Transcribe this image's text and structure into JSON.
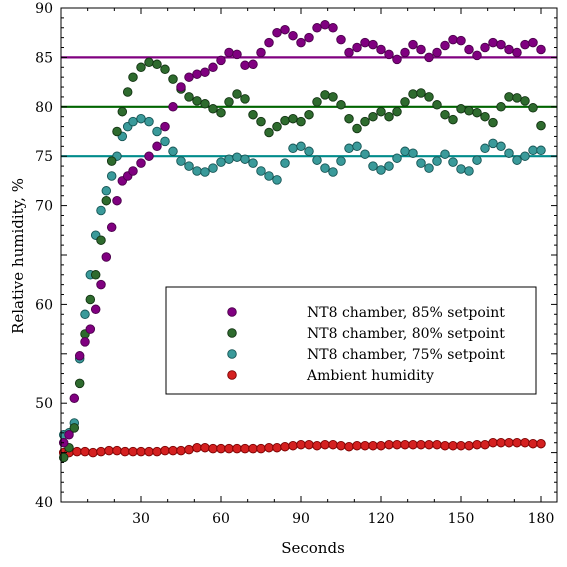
{
  "chart_data": {
    "type": "scatter",
    "title": "",
    "xlabel": "Seconds",
    "ylabel": "Relative humidity, %",
    "xlim": [
      0,
      186
    ],
    "ylim": [
      40,
      90
    ],
    "xticks": [
      30,
      60,
      90,
      120,
      150,
      180
    ],
    "yticks": [
      40,
      50,
      60,
      70,
      75,
      80,
      85,
      90
    ],
    "grid": false,
    "legend_position": "center-right",
    "reference_lines": [
      {
        "y": 85,
        "color": "#800080"
      },
      {
        "y": 80,
        "color": "#006400"
      },
      {
        "y": 75,
        "color": "#008b8b"
      }
    ],
    "series": [
      {
        "name": "NT8 chamber, 85% setpoint",
        "color": "#800080",
        "edge": "#4b004b",
        "points": [
          [
            1,
            46.0
          ],
          [
            3,
            46.8
          ],
          [
            5,
            50.5
          ],
          [
            7,
            54.8
          ],
          [
            9,
            56.2
          ],
          [
            11,
            57.5
          ],
          [
            13,
            59.5
          ],
          [
            15,
            62.0
          ],
          [
            17,
            64.8
          ],
          [
            19,
            67.8
          ],
          [
            21,
            70.5
          ],
          [
            23,
            72.5
          ],
          [
            25,
            73.0
          ],
          [
            27,
            73.5
          ],
          [
            30,
            74.3
          ],
          [
            33,
            75.0
          ],
          [
            36,
            76.0
          ],
          [
            39,
            78.0
          ],
          [
            42,
            80.0
          ],
          [
            45,
            82.0
          ],
          [
            48,
            83.0
          ],
          [
            51,
            83.3
          ],
          [
            54,
            83.5
          ],
          [
            57,
            84.0
          ],
          [
            60,
            84.7
          ],
          [
            63,
            85.5
          ],
          [
            66,
            85.3
          ],
          [
            69,
            84.2
          ],
          [
            72,
            84.3
          ],
          [
            75,
            85.5
          ],
          [
            78,
            86.5
          ],
          [
            81,
            87.5
          ],
          [
            84,
            87.8
          ],
          [
            87,
            87.2
          ],
          [
            90,
            86.5
          ],
          [
            93,
            87.0
          ],
          [
            96,
            88.0
          ],
          [
            99,
            88.3
          ],
          [
            102,
            88.0
          ],
          [
            105,
            86.8
          ],
          [
            108,
            85.5
          ],
          [
            111,
            86.0
          ],
          [
            114,
            86.5
          ],
          [
            117,
            86.3
          ],
          [
            120,
            85.8
          ],
          [
            123,
            85.3
          ],
          [
            126,
            84.8
          ],
          [
            129,
            85.5
          ],
          [
            132,
            86.3
          ],
          [
            135,
            85.8
          ],
          [
            138,
            85.0
          ],
          [
            141,
            85.5
          ],
          [
            144,
            86.2
          ],
          [
            147,
            86.8
          ],
          [
            150,
            86.7
          ],
          [
            153,
            85.8
          ],
          [
            156,
            85.2
          ],
          [
            159,
            86.0
          ],
          [
            162,
            86.5
          ],
          [
            165,
            86.3
          ],
          [
            168,
            85.8
          ],
          [
            171,
            85.5
          ],
          [
            174,
            86.3
          ],
          [
            177,
            86.5
          ],
          [
            180,
            85.8
          ]
        ]
      },
      {
        "name": "NT8 chamber, 80% setpoint",
        "color": "#2e6b2e",
        "edge": "#123312",
        "points": [
          [
            1,
            44.5
          ],
          [
            3,
            45.5
          ],
          [
            5,
            47.5
          ],
          [
            7,
            52.0
          ],
          [
            9,
            57.0
          ],
          [
            11,
            60.5
          ],
          [
            13,
            63.0
          ],
          [
            15,
            66.5
          ],
          [
            17,
            70.5
          ],
          [
            19,
            74.5
          ],
          [
            21,
            77.5
          ],
          [
            23,
            79.5
          ],
          [
            25,
            81.5
          ],
          [
            27,
            83.0
          ],
          [
            30,
            84.0
          ],
          [
            33,
            84.5
          ],
          [
            36,
            84.3
          ],
          [
            39,
            83.8
          ],
          [
            42,
            82.8
          ],
          [
            45,
            81.8
          ],
          [
            48,
            81.0
          ],
          [
            51,
            80.6
          ],
          [
            54,
            80.3
          ],
          [
            57,
            79.8
          ],
          [
            60,
            79.4
          ],
          [
            63,
            80.5
          ],
          [
            66,
            81.3
          ],
          [
            69,
            80.8
          ],
          [
            72,
            79.2
          ],
          [
            75,
            78.5
          ],
          [
            78,
            77.4
          ],
          [
            81,
            78.0
          ],
          [
            84,
            78.6
          ],
          [
            87,
            78.8
          ],
          [
            90,
            78.5
          ],
          [
            93,
            79.2
          ],
          [
            96,
            80.5
          ],
          [
            99,
            81.2
          ],
          [
            102,
            81.0
          ],
          [
            105,
            80.2
          ],
          [
            108,
            78.8
          ],
          [
            111,
            77.8
          ],
          [
            114,
            78.5
          ],
          [
            117,
            79.0
          ],
          [
            120,
            79.5
          ],
          [
            123,
            79.0
          ],
          [
            126,
            79.5
          ],
          [
            129,
            80.5
          ],
          [
            132,
            81.3
          ],
          [
            135,
            81.4
          ],
          [
            138,
            81.0
          ],
          [
            141,
            80.2
          ],
          [
            144,
            79.2
          ],
          [
            147,
            78.7
          ],
          [
            150,
            79.8
          ],
          [
            153,
            79.6
          ],
          [
            156,
            79.4
          ],
          [
            159,
            79.0
          ],
          [
            162,
            78.4
          ],
          [
            165,
            80.0
          ],
          [
            168,
            81.0
          ],
          [
            171,
            80.9
          ],
          [
            174,
            80.6
          ],
          [
            177,
            79.9
          ],
          [
            180,
            78.1
          ]
        ]
      },
      {
        "name": "NT8 chamber, 75% setpoint",
        "color": "#3a9a9a",
        "edge": "#155454",
        "points": [
          [
            1,
            46.8
          ],
          [
            3,
            47.0
          ],
          [
            5,
            48.0
          ],
          [
            7,
            54.5
          ],
          [
            9,
            59.0
          ],
          [
            11,
            63.0
          ],
          [
            13,
            67.0
          ],
          [
            15,
            69.5
          ],
          [
            17,
            71.5
          ],
          [
            19,
            73.0
          ],
          [
            21,
            75.0
          ],
          [
            23,
            77.0
          ],
          [
            25,
            78.0
          ],
          [
            27,
            78.5
          ],
          [
            30,
            78.8
          ],
          [
            33,
            78.5
          ],
          [
            36,
            77.5
          ],
          [
            39,
            76.5
          ],
          [
            42,
            75.5
          ],
          [
            45,
            74.5
          ],
          [
            48,
            74.0
          ],
          [
            51,
            73.5
          ],
          [
            54,
            73.4
          ],
          [
            57,
            73.8
          ],
          [
            60,
            74.4
          ],
          [
            63,
            74.7
          ],
          [
            66,
            74.9
          ],
          [
            69,
            74.7
          ],
          [
            72,
            74.3
          ],
          [
            75,
            73.5
          ],
          [
            78,
            73.0
          ],
          [
            81,
            72.6
          ],
          [
            84,
            74.3
          ],
          [
            87,
            75.8
          ],
          [
            90,
            76.0
          ],
          [
            93,
            75.5
          ],
          [
            96,
            74.6
          ],
          [
            99,
            73.8
          ],
          [
            102,
            73.4
          ],
          [
            105,
            74.5
          ],
          [
            108,
            75.8
          ],
          [
            111,
            76.0
          ],
          [
            114,
            75.2
          ],
          [
            117,
            74.0
          ],
          [
            120,
            73.6
          ],
          [
            123,
            74.0
          ],
          [
            126,
            74.8
          ],
          [
            129,
            75.5
          ],
          [
            132,
            75.3
          ],
          [
            135,
            74.3
          ],
          [
            138,
            73.8
          ],
          [
            141,
            74.5
          ],
          [
            144,
            75.2
          ],
          [
            147,
            74.4
          ],
          [
            150,
            73.7
          ],
          [
            153,
            73.5
          ],
          [
            156,
            74.6
          ],
          [
            159,
            75.8
          ],
          [
            162,
            76.3
          ],
          [
            165,
            76.0
          ],
          [
            168,
            75.3
          ],
          [
            171,
            74.6
          ],
          [
            174,
            75.0
          ],
          [
            177,
            75.6
          ],
          [
            180,
            75.6
          ]
        ]
      },
      {
        "name": "Ambient humidity",
        "color": "#d42020",
        "edge": "#7a0000",
        "points": [
          [
            1,
            45.0
          ],
          [
            3,
            45.0
          ],
          [
            6,
            45.1
          ],
          [
            9,
            45.1
          ],
          [
            12,
            45.0
          ],
          [
            15,
            45.1
          ],
          [
            18,
            45.2
          ],
          [
            21,
            45.2
          ],
          [
            24,
            45.1
          ],
          [
            27,
            45.1
          ],
          [
            30,
            45.1
          ],
          [
            33,
            45.1
          ],
          [
            36,
            45.1
          ],
          [
            39,
            45.2
          ],
          [
            42,
            45.2
          ],
          [
            45,
            45.2
          ],
          [
            48,
            45.3
          ],
          [
            51,
            45.5
          ],
          [
            54,
            45.5
          ],
          [
            57,
            45.4
          ],
          [
            60,
            45.4
          ],
          [
            63,
            45.4
          ],
          [
            66,
            45.4
          ],
          [
            69,
            45.4
          ],
          [
            72,
            45.4
          ],
          [
            75,
            45.4
          ],
          [
            78,
            45.5
          ],
          [
            81,
            45.5
          ],
          [
            84,
            45.6
          ],
          [
            87,
            45.7
          ],
          [
            90,
            45.8
          ],
          [
            93,
            45.8
          ],
          [
            96,
            45.7
          ],
          [
            99,
            45.8
          ],
          [
            102,
            45.8
          ],
          [
            105,
            45.7
          ],
          [
            108,
            45.6
          ],
          [
            111,
            45.7
          ],
          [
            114,
            45.7
          ],
          [
            117,
            45.7
          ],
          [
            120,
            45.7
          ],
          [
            123,
            45.8
          ],
          [
            126,
            45.8
          ],
          [
            129,
            45.8
          ],
          [
            132,
            45.8
          ],
          [
            135,
            45.8
          ],
          [
            138,
            45.8
          ],
          [
            141,
            45.8
          ],
          [
            144,
            45.7
          ],
          [
            147,
            45.7
          ],
          [
            150,
            45.7
          ],
          [
            153,
            45.7
          ],
          [
            156,
            45.8
          ],
          [
            159,
            45.8
          ],
          [
            162,
            46.0
          ],
          [
            165,
            46.0
          ],
          [
            168,
            46.0
          ],
          [
            171,
            46.0
          ],
          [
            174,
            46.0
          ],
          [
            177,
            45.9
          ],
          [
            180,
            45.9
          ]
        ]
      }
    ]
  }
}
